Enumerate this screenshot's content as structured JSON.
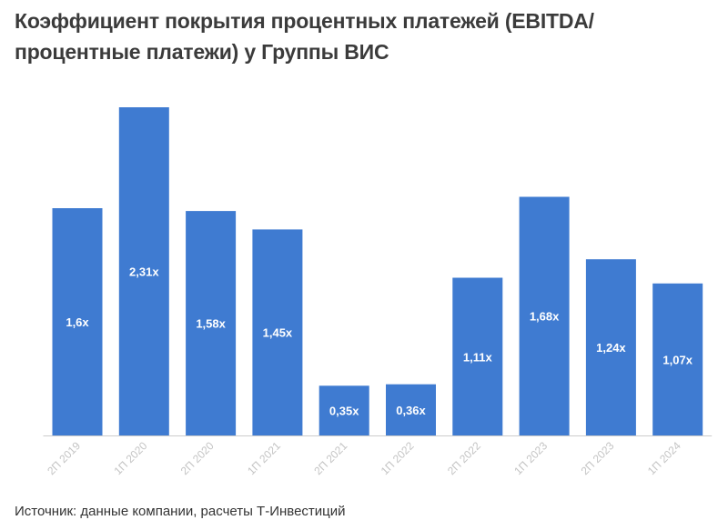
{
  "title": "Коэффициент покрытия процентных платежей (EBITDA/процентные платежи) у Группы ВИС",
  "source": "Источник: данные компании, расчеты Т-Инвестиций",
  "colors": {
    "bar": "#3f7bd1",
    "bar_label": "#ffffff",
    "axis": "#cccccc",
    "tick_label": "#c4c4c4"
  },
  "chart_data": {
    "type": "bar",
    "categories": [
      "2П 2019",
      "1П 2020",
      "2П 2020",
      "1П 2021",
      "2П 2021",
      "1П 2022",
      "2П 2022",
      "1П 2023",
      "2П 2023",
      "1П 2024"
    ],
    "values": [
      1.6,
      2.31,
      1.58,
      1.45,
      0.35,
      0.36,
      1.11,
      1.68,
      1.24,
      1.07
    ],
    "data_labels": [
      "1,6x",
      "2,31x",
      "1,58x",
      "1,45x",
      "0,35x",
      "0,36x",
      "1,11x",
      "1,68x",
      "1,24x",
      "1,07x"
    ],
    "title": "Коэффициент покрытия процентных платежей (EBITDA/процентные платежи) у Группы ВИС",
    "xlabel": "",
    "ylabel": "",
    "ylim": [
      0,
      2.31
    ],
    "grid": false,
    "legend": "none"
  }
}
